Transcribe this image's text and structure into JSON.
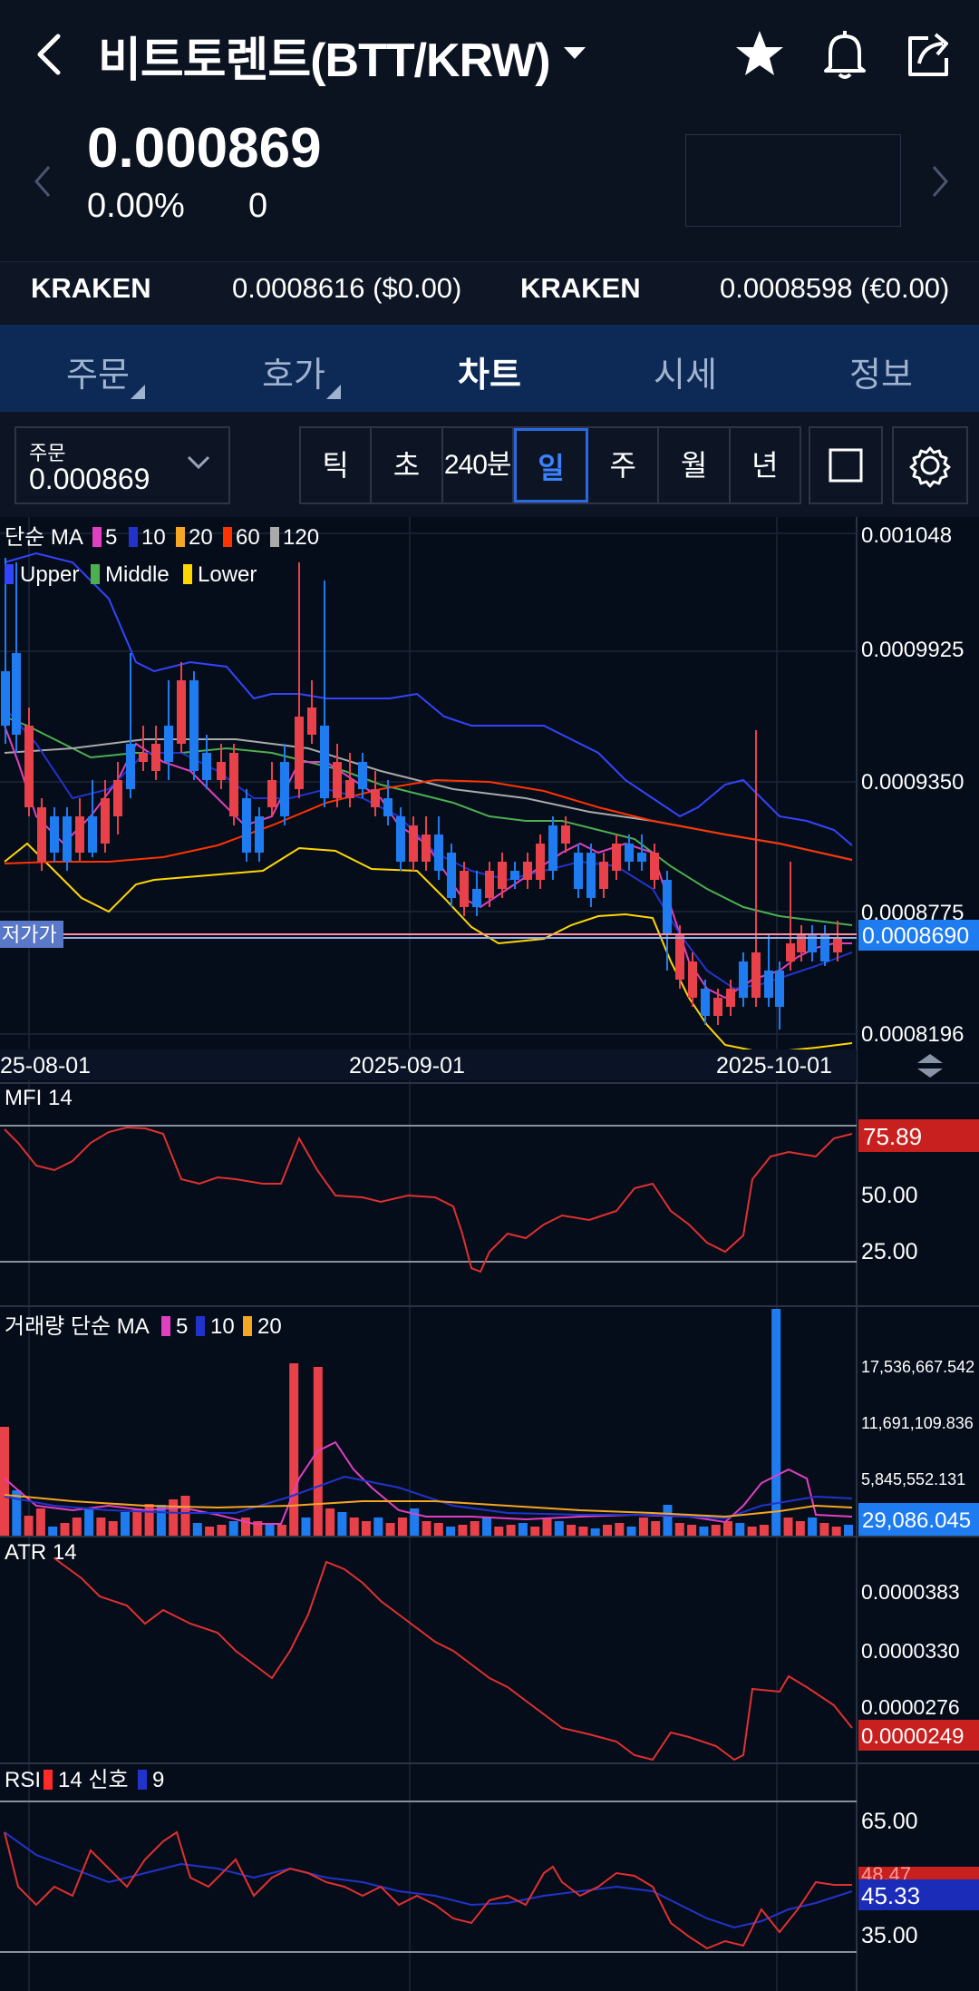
{
  "header": {
    "title": "비트토렌트(BTT/KRW)",
    "back_icon": "back-arrow-icon",
    "icons": [
      "star-icon",
      "bell-icon",
      "share-icon"
    ]
  },
  "price": {
    "current": "0.000869",
    "change_percent": "0.00%",
    "change_value": "0"
  },
  "exchanges": [
    {
      "name": "KRAKEN",
      "value": "0.0008616 ($0.00)"
    },
    {
      "name": "KRAKEN",
      "value": "0.0008598 (€0.00)"
    }
  ],
  "tabs": [
    {
      "label": "주문",
      "active": false,
      "has_menu": true
    },
    {
      "label": "호가",
      "active": false,
      "has_menu": true
    },
    {
      "label": "차트",
      "active": true,
      "has_menu": false
    },
    {
      "label": "시세",
      "active": false,
      "has_menu": false
    },
    {
      "label": "정보",
      "active": false,
      "has_menu": false
    }
  ],
  "toolbar": {
    "order_label": "주문",
    "order_value": "0.000869",
    "periods": [
      "틱",
      "초",
      "240분",
      "일",
      "주",
      "월",
      "년"
    ],
    "selected_period": "일"
  },
  "main_chart": {
    "legend_ma": {
      "prefix": "단순 MA",
      "items": [
        {
          "label": "5",
          "color": "#e040c0"
        },
        {
          "label": "10",
          "color": "#2233cc"
        },
        {
          "label": "20",
          "color": "#f5a623"
        },
        {
          "label": "60",
          "color": "#ff3300"
        },
        {
          "label": "120",
          "color": "#aaaaaa"
        }
      ]
    },
    "legend_bb": [
      {
        "label": "Upper",
        "color": "#3344ff"
      },
      {
        "label": "Middle",
        "color": "#4caf50"
      },
      {
        "label": "Lower",
        "color": "#ffd600"
      }
    ],
    "y_ticks": [
      "0.001048",
      "0.0009925",
      "0.0009350",
      "0.0008775",
      "0.0008196"
    ],
    "current_label": "0.0008690",
    "low_marker": "저가가",
    "x_ticks": [
      "25-08-01",
      "2025-09-01",
      "2025-10-01"
    ]
  },
  "mfi": {
    "label": "MFI 14",
    "current": "75.89",
    "y_ticks": [
      "50.00",
      "25.00"
    ]
  },
  "volume": {
    "prefix": "거래량 단순 MA",
    "legend": [
      {
        "label": "5",
        "color": "#e040c0"
      },
      {
        "label": "10",
        "color": "#2233cc"
      },
      {
        "label": "20",
        "color": "#f5a623"
      }
    ],
    "y_ticks": [
      "17,536,667.542",
      "11,691,109.836",
      "5,845,552.131"
    ],
    "current": "29,086.045"
  },
  "atr": {
    "label": "ATR 14",
    "y_ticks": [
      "0.0000383",
      "0.0000330",
      "0.0000276"
    ],
    "current": "0.0000249"
  },
  "rsi": {
    "prefix": "RSI",
    "legend": [
      {
        "label": "14 신호",
        "color": "#ff2a2a"
      },
      {
        "label": "9",
        "color": "#2233cc"
      }
    ],
    "y_ticks": [
      "65.00",
      "35.00"
    ],
    "current_rsi": "48.47",
    "current_signal": "45.33"
  },
  "colors": {
    "up": "#e8414a",
    "down": "#1f7cf0",
    "accent": "#2a6ae0",
    "tab_bar": "#0d2a57"
  }
}
